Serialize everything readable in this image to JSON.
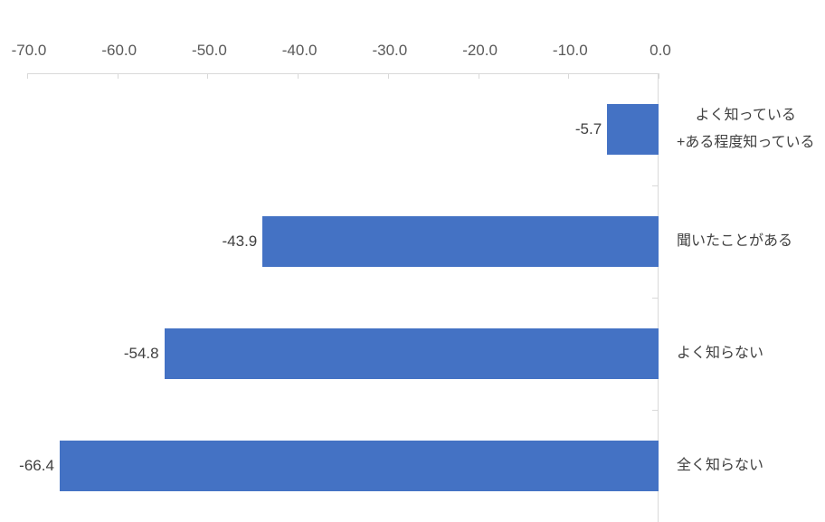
{
  "chart_data": {
    "type": "bar",
    "orientation": "horizontal",
    "title": "",
    "xlabel": "",
    "ylabel": "",
    "categories": [
      "よく知っている\n+ある程度知っている",
      "聞いたことがある",
      "よく知らない",
      "全く知らない"
    ],
    "values": [
      -5.7,
      -43.9,
      -54.8,
      -66.4
    ],
    "value_labels": [
      "-5.7",
      "-43.9",
      "-54.8",
      "-66.4"
    ],
    "xlim": [
      -70,
      0
    ],
    "x_ticks": [
      -70,
      -60,
      -50,
      -40,
      -30,
      -20,
      -10,
      0
    ],
    "x_tick_labels": [
      "-70.0",
      "-60.0",
      "-50.0",
      "-40.0",
      "-30.0",
      "-20.0",
      "-10.0",
      "0.0"
    ],
    "x_axis_position": "top",
    "category_axis_position": "right-at-zero",
    "grid": false,
    "legend": false,
    "colors": {
      "bar_fill": "#4472c4",
      "axis_line": "#d9d9d9",
      "tick_label": "#595959",
      "value_label": "#404040",
      "category_label": "#404040",
      "background": "#ffffff"
    }
  }
}
